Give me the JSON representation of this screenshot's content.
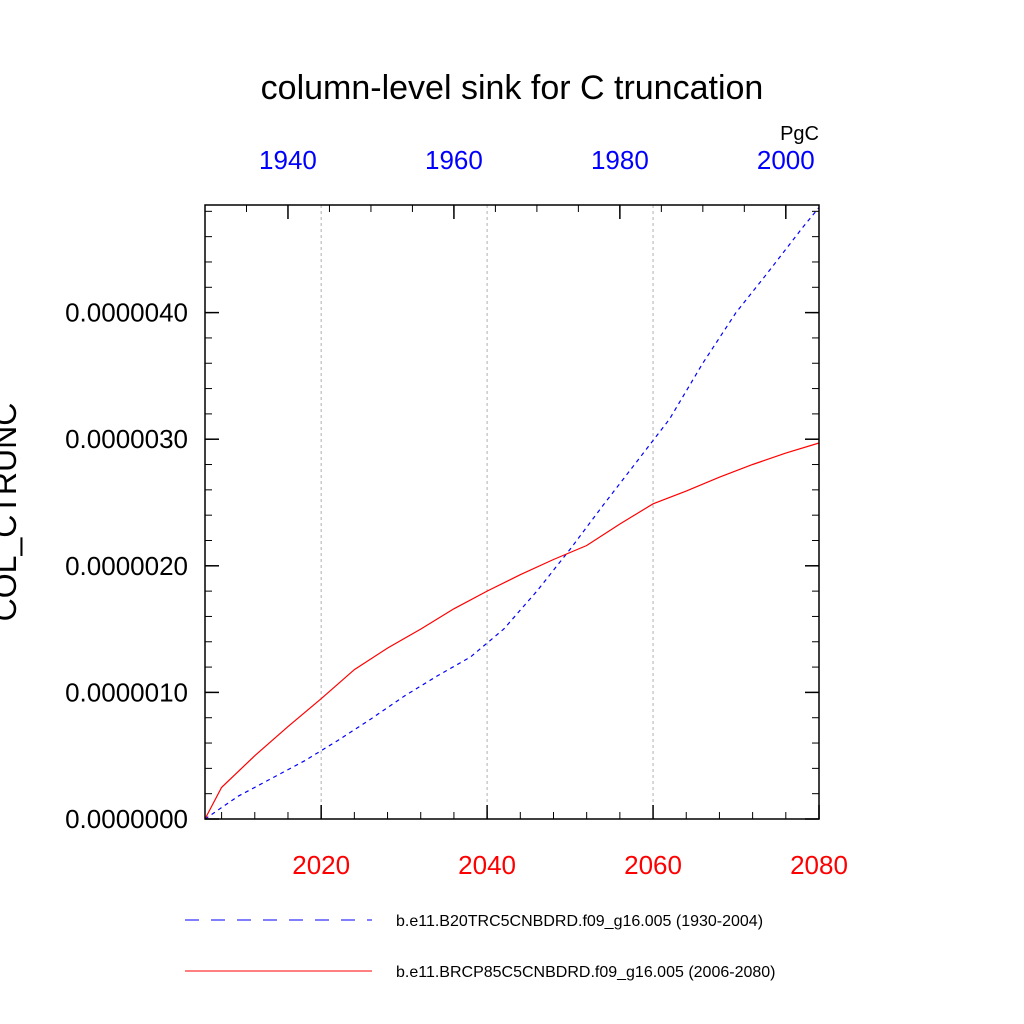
{
  "chart_data": {
    "type": "line",
    "title": "column-level sink for C truncation",
    "ylabel": "COL_CTRUNC",
    "units": "PgC",
    "ylim": [
      0,
      4.85e-06
    ],
    "yticks": [
      0,
      1e-06,
      2e-06,
      3e-06,
      4e-06
    ],
    "ytick_labels": [
      "0.0000000",
      "0.0000010",
      "0.0000020",
      "0.0000030",
      "0.0000040"
    ],
    "x_bottom": {
      "range": [
        2006,
        2080
      ],
      "ticks": [
        2020,
        2040,
        2060,
        2080
      ],
      "tick_labels": [
        "2020",
        "2040",
        "2060",
        "2080"
      ],
      "color": "#ff0000"
    },
    "x_top": {
      "range": [
        1930,
        2004
      ],
      "ticks": [
        1940,
        1960,
        1980,
        2000
      ],
      "tick_labels": [
        "1940",
        "1960",
        "1980",
        "2000"
      ],
      "color": "#0000ff"
    },
    "grid": "vertical dashed at bottom-axis major ticks",
    "legend_position": "bottom",
    "series": [
      {
        "name": "b.e11.B20TRC5CNBDRD.f09_g16.005 (1930-2004)",
        "axis": "top",
        "color": "#0000ff",
        "style": "dashed",
        "x": [
          1930,
          1934,
          1938,
          1942,
          1946,
          1950,
          1954,
          1958,
          1962,
          1966,
          1970,
          1974,
          1978,
          1982,
          1986,
          1990,
          1994,
          1998,
          2002,
          2004
        ],
        "y": [
          0,
          1.8e-07,
          3.2e-07,
          4.6e-07,
          6.2e-07,
          7.9e-07,
          9.7e-07,
          1.13e-06,
          1.28e-06,
          1.5e-06,
          1.8e-06,
          2.13e-06,
          2.48e-06,
          2.82e-06,
          3.16e-06,
          3.6e-06,
          4e-06,
          4.33e-06,
          4.67e-06,
          4.83e-06
        ]
      },
      {
        "name": "b.e11.BRCP85C5CNBDRD.f09_g16.005 (2006-2080)",
        "axis": "bottom",
        "color": "#ff0000",
        "style": "solid",
        "x": [
          2006,
          2008,
          2012,
          2016,
          2020,
          2024,
          2028,
          2032,
          2036,
          2040,
          2044,
          2048,
          2052,
          2056,
          2060,
          2064,
          2068,
          2072,
          2076,
          2080
        ],
        "y": [
          0,
          2.5e-07,
          5e-07,
          7.3e-07,
          9.5e-07,
          1.18e-06,
          1.35e-06,
          1.5e-06,
          1.66e-06,
          1.8e-06,
          1.93e-06,
          2.05e-06,
          2.16e-06,
          2.33e-06,
          2.49e-06,
          2.59e-06,
          2.7e-06,
          2.8e-06,
          2.89e-06,
          2.97e-06
        ]
      }
    ]
  }
}
